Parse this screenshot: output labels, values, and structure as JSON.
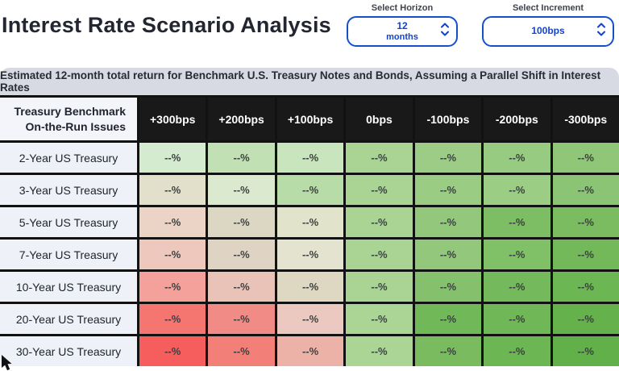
{
  "title": "Interest Rate Scenario Analysis",
  "controls": {
    "horizon": {
      "label": "Select Horizon",
      "value_line1": "12",
      "value_line2": "months"
    },
    "increment": {
      "label": "Select Increment",
      "value": "100bps"
    }
  },
  "subtitle": "Estimated 12-month total return for Benchmark U.S. Treasury Notes and Bonds, Assuming a Parallel Shift in Interest Rates",
  "table": {
    "corner_line1": "Treasury Benchmark",
    "corner_line2": "On-the-Run Issues",
    "columns": [
      "+300bps",
      "+200bps",
      "+100bps",
      "0bps",
      "-100bps",
      "-200bps",
      "-300bps"
    ],
    "cell_value": "--%",
    "rows": [
      {
        "label": "2-Year US Treasury",
        "values": [
          "--%",
          "--%",
          "--%",
          "--%",
          "--%",
          "--%",
          "--%"
        ],
        "colors": [
          "#d5ebcf",
          "#c1e1b5",
          "#c9e5bd",
          "#a9d493",
          "#9dcc87",
          "#98cb82",
          "#8fc677"
        ]
      },
      {
        "label": "3-Year US Treasury",
        "values": [
          "--%",
          "--%",
          "--%",
          "--%",
          "--%",
          "--%",
          "--%"
        ],
        "colors": [
          "#e2dfca",
          "#dbe9cf",
          "#b8dca7",
          "#a9d493",
          "#9acc84",
          "#9bcd85",
          "#8cc476"
        ]
      },
      {
        "label": "5-Year US Treasury",
        "values": [
          "--%",
          "--%",
          "--%",
          "--%",
          "--%",
          "--%",
          "--%"
        ],
        "colors": [
          "#ebd4c5",
          "#dbd7c2",
          "#e1e4cb",
          "#a9d493",
          "#93c87c",
          "#7dbd63",
          "#7bbc61"
        ]
      },
      {
        "label": "7-Year US Treasury",
        "values": [
          "--%",
          "--%",
          "--%",
          "--%",
          "--%",
          "--%",
          "--%"
        ],
        "colors": [
          "#eec8bc",
          "#dfd4c3",
          "#e4e3cf",
          "#a9d493",
          "#93c87c",
          "#80c067",
          "#73b95a"
        ]
      },
      {
        "label": "10-Year US Treasury",
        "values": [
          "--%",
          "--%",
          "--%",
          "--%",
          "--%",
          "--%",
          "--%"
        ],
        "colors": [
          "#f4a19b",
          "#e9c2b8",
          "#ded8c3",
          "#a9d493",
          "#85c06c",
          "#74b95b",
          "#6cb653"
        ]
      },
      {
        "label": "20-Year US Treasury",
        "values": [
          "--%",
          "--%",
          "--%",
          "--%",
          "--%",
          "--%",
          "--%"
        ],
        "colors": [
          "#f57571",
          "#f08c85",
          "#ebc9c0",
          "#aad595",
          "#71b958",
          "#70b857",
          "#65b14b"
        ]
      },
      {
        "label": "30-Year US Treasury",
        "values": [
          "--%",
          "--%",
          "--%",
          "--%",
          "--%",
          "--%",
          "--%"
        ],
        "colors": [
          "#f55e5c",
          "#f28079",
          "#ecb2a8",
          "#aad595",
          "#7abb60",
          "#6cb653",
          "#62b049"
        ]
      }
    ]
  },
  "colors": {
    "accent_blue_border": "#1550cc",
    "accent_blue_text": "#1243cd",
    "column_header_bg": "#191919",
    "grid_line": "#121212",
    "subtitle_bg": "#d8dae3",
    "row_label_bg": "#eef1f7",
    "corner_bg": "#f3f5fa"
  }
}
